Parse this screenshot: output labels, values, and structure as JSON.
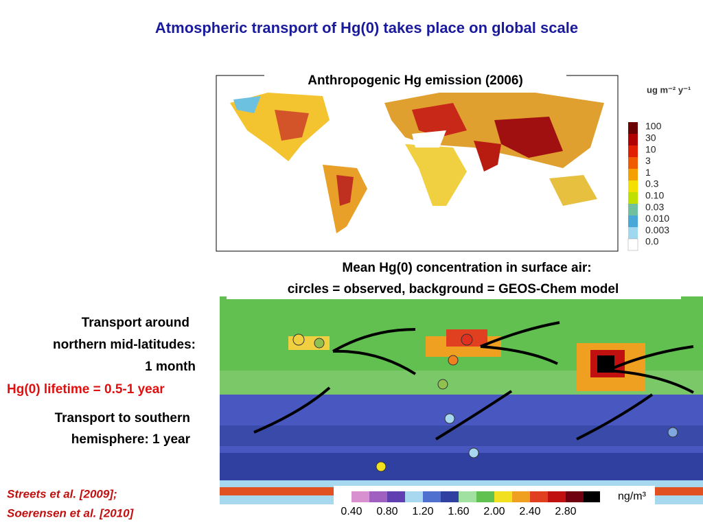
{
  "title": "Atmospheric transport of Hg(0) takes place on global scale",
  "map1": {
    "title": "Anthropogenic Hg emission (2006)",
    "unit": "ug m⁻² y⁻¹",
    "legend_labels": [
      "100",
      "30",
      "10",
      "3",
      "1",
      "0.3",
      "0.10",
      "0.03",
      "0.010",
      "0.003",
      "0.0"
    ]
  },
  "map2": {
    "caption_lines": [
      "Mean Hg(0) concentration in surface air:",
      "circles = observed, background = GEOS-Chem model"
    ],
    "unit": "ng/m³",
    "legend_labels": [
      "0.40",
      "0.80",
      "1.20",
      "1.60",
      "2.00",
      "2.40",
      "2.80"
    ]
  },
  "notes": {
    "north_lines": [
      "Transport around",
      "northern mid-latitudes:",
      "1 month"
    ],
    "lifetime": "Hg(0) lifetime = 0.5-1 year",
    "south_lines": [
      "Transport to southern",
      "hemisphere: 1 year"
    ]
  },
  "citations": [
    "Streets et al. [2009];",
    "Soerensen et al. [2010]"
  ]
}
